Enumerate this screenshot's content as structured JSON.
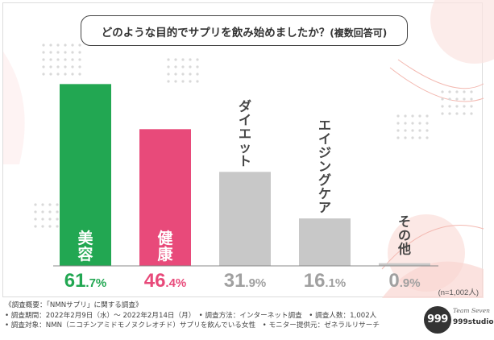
{
  "question": {
    "main": "どのような目的でサプリを飲み始めましたか？",
    "sub": "(複数回答可)"
  },
  "chart_data": {
    "type": "bar",
    "title": "どのような目的でサプリを飲み始めましたか？(複数回答可)",
    "categories": [
      "美容",
      "健康",
      "ダイエット",
      "エイジングケア",
      "その他"
    ],
    "values": [
      61.7,
      46.4,
      31.9,
      16.1,
      0.9
    ],
    "value_labels": [
      {
        "int": "61",
        "dec": ".7%"
      },
      {
        "int": "46",
        "dec": ".4%"
      },
      {
        "int": "31",
        "dec": ".9%"
      },
      {
        "int": "16",
        "dec": ".1%"
      },
      {
        "int": "0",
        "dec": ".9%"
      }
    ],
    "bar_colors": [
      "#22a752",
      "#e84a7a",
      "#c8c8c8",
      "#c8c8c8",
      "#c8c8c8"
    ],
    "value_colors": [
      "#22a752",
      "#e84a7a",
      "#a0a0a0",
      "#a0a0a0",
      "#a0a0a0"
    ],
    "category_label_colors": [
      "#ffffff",
      "#ffffff",
      "#444444",
      "#444444",
      "#444444"
    ],
    "ylim": [
      0,
      70
    ],
    "sample_note": "(n=1,002人)"
  },
  "footer": {
    "line1": "《調査概要：「NMNサプリ」に関する調査》",
    "line2": "• 調査期間：2022年2月9日（水）〜 2022年2月14日（月）　• 調査方法：インターネット調査　• 調査人数：1,002人",
    "line3": "• 調査対象：NMN（ニコチンアミドモノヌクレオチド）サプリを飲んでいる女性　• モニター提供元：ゼネラルリサーチ"
  },
  "logo": {
    "badge": "999",
    "signature": "Team Seven",
    "name": "999studio"
  },
  "colors": {
    "accent_green": "#22a752",
    "accent_pink": "#e84a7a",
    "neutral_gray": "#c8c8c8",
    "baseline": "#888888"
  }
}
